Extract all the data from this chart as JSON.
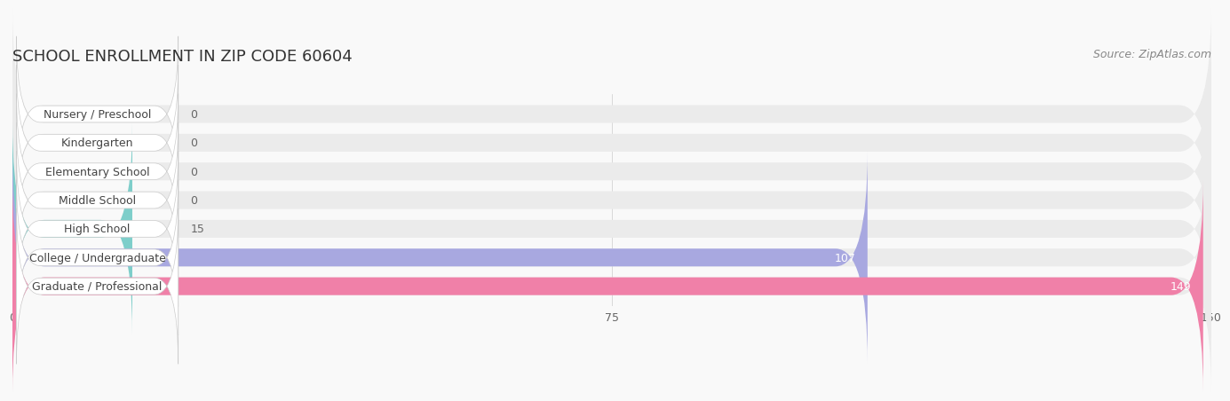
{
  "title": "SCHOOL ENROLLMENT IN ZIP CODE 60604",
  "source": "Source: ZipAtlas.com",
  "categories": [
    "Nursery / Preschool",
    "Kindergarten",
    "Elementary School",
    "Middle School",
    "High School",
    "College / Undergraduate",
    "Graduate / Professional"
  ],
  "values": [
    0,
    0,
    0,
    0,
    15,
    107,
    149
  ],
  "bar_colors": [
    "#f5c49a",
    "#f4a0a0",
    "#a8c4e0",
    "#c9a8d4",
    "#7ececa",
    "#a8a8e0",
    "#f080a8"
  ],
  "bar_bg_color": "#ebebeb",
  "label_bg_color": "#ffffff",
  "label_text_color": "#444444",
  "value_text_color_inside": "#ffffff",
  "value_text_color_outside": "#666666",
  "xlim": [
    0,
    150
  ],
  "xticks": [
    0,
    75,
    150
  ],
  "title_fontsize": 13,
  "source_fontsize": 9,
  "label_fontsize": 9,
  "value_fontsize": 9,
  "tick_fontsize": 9,
  "bar_height": 0.62,
  "background_color": "#f9f9f9"
}
